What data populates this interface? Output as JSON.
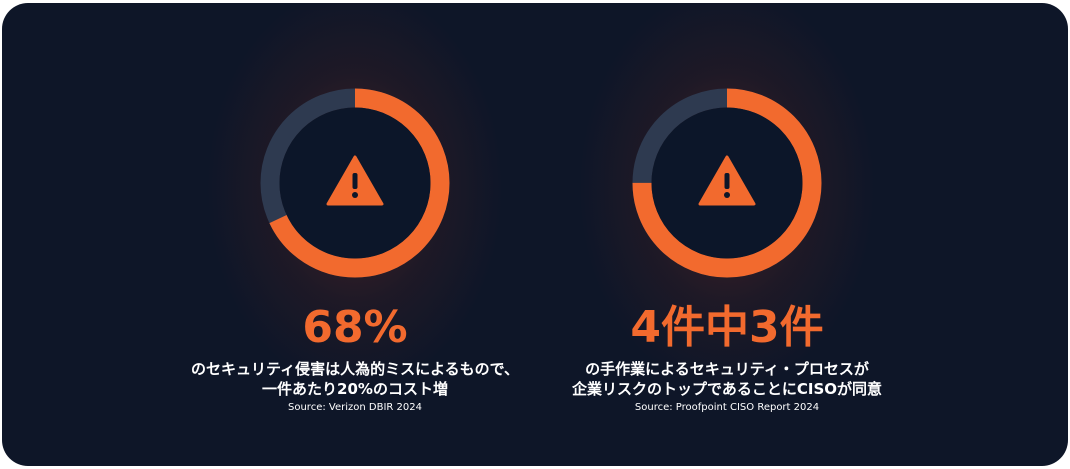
{
  "colors": {
    "accent": "#f26a2e",
    "track": "#2e3a50",
    "background": "#0e1628"
  },
  "stats": [
    {
      "headline": "68%",
      "fraction": 0.68,
      "line1": "のセキュリティ侵害は人為的ミスによるもので、",
      "line2": "一件あたり20%のコスト増",
      "source": "Source: Verizon DBIR 2024",
      "icon": "warning-icon"
    },
    {
      "headline": "4件中3件",
      "fraction": 0.75,
      "line1": "の手作業によるセキュリティ・プロセスが",
      "line2": "企業リスクのトップであることにCISOが同意",
      "source": "Source: Proofpoint CISO Report 2024",
      "icon": "warning-icon"
    }
  ]
}
